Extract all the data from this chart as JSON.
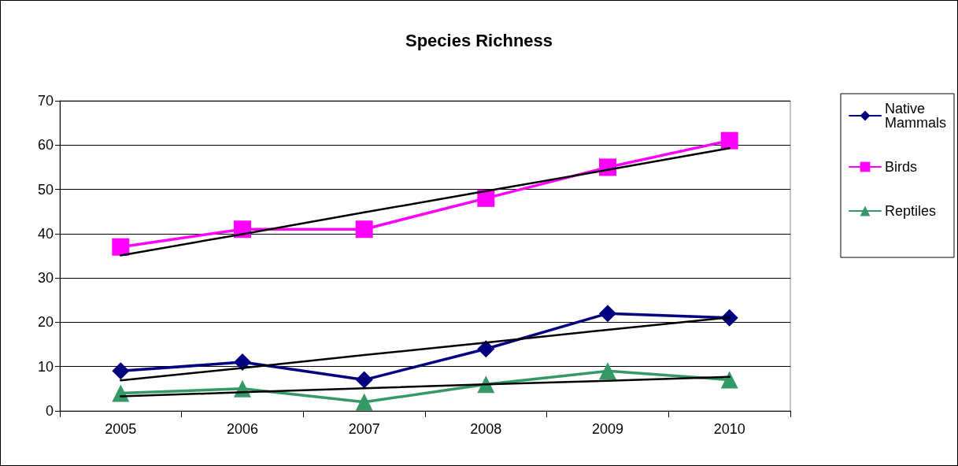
{
  "chart_data": {
    "type": "line",
    "title": "Species Richness",
    "categories": [
      "2005",
      "2006",
      "2007",
      "2008",
      "2009",
      "2010"
    ],
    "series": [
      {
        "name": "Native Mammals",
        "color": "#000080",
        "marker": "diamond",
        "values": [
          9,
          11,
          7,
          14,
          22,
          21
        ]
      },
      {
        "name": "Birds",
        "color": "#ff00ff",
        "marker": "square",
        "values": [
          37,
          41,
          41,
          48,
          55,
          61
        ]
      },
      {
        "name": "Reptiles",
        "color": "#339966",
        "marker": "triangle",
        "values": [
          4,
          5,
          2,
          6,
          9,
          7
        ]
      },
      {
        "type": "line",
        "color": "#000000",
        "marker": "none",
        "values": [
          6.9,
          9.7,
          12.6,
          15.4,
          18.3,
          21.1
        ]
      },
      {
        "type": "line",
        "color": "#000000",
        "marker": "none",
        "values": [
          35.1,
          39.9,
          44.8,
          49.6,
          54.4,
          59.3
        ]
      },
      {
        "type": "line",
        "color": "#000000",
        "marker": "none",
        "values": [
          3.3,
          4.2,
          5.1,
          6.0,
          6.8,
          7.7
        ]
      }
    ],
    "ylim": [
      0,
      70
    ],
    "yticks": [
      0,
      10,
      20,
      30,
      40,
      50,
      60,
      70
    ],
    "grid": "y",
    "legend": "right",
    "line_style": "solid"
  }
}
